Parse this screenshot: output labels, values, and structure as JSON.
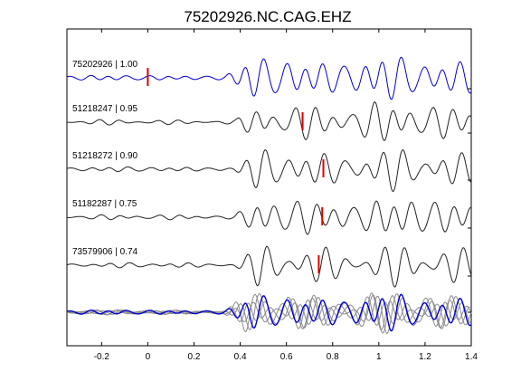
{
  "chart_data": {
    "type": "line",
    "title": "75202926.NC.CAG.EHZ",
    "xlabel": "",
    "ylabel": "",
    "xlim": [
      -0.35,
      1.4
    ],
    "x_ticks": [
      -0.2,
      0,
      0.2,
      0.4,
      0.6,
      0.8,
      1,
      1.2,
      1.4
    ],
    "x_tick_labels": [
      "-0.2",
      "0",
      "0.2",
      "0.4",
      "0.6",
      "0.8",
      "1",
      "1.2",
      "1.4"
    ],
    "grid": false,
    "colors": {
      "reference": "#0000cc",
      "trace": "#222222",
      "stack_other": "#8a8a8a",
      "pick": "#e00000",
      "axis": "#000000"
    },
    "series": [
      {
        "label": "75202926 | 1.00",
        "pick_time": 0.0,
        "color": "#0000cc"
      },
      {
        "label": "51218247 | 0.95",
        "pick_time": 0.67,
        "color": "#222222"
      },
      {
        "label": "51218272 | 0.90",
        "pick_time": 0.76,
        "color": "#222222"
      },
      {
        "label": "51182287 | 0.75",
        "pick_time": 0.755,
        "color": "#222222"
      },
      {
        "label": "73579906 | 0.74",
        "pick_time": 0.74,
        "color": "#222222"
      }
    ],
    "stack": {
      "description_label": ""
    }
  }
}
